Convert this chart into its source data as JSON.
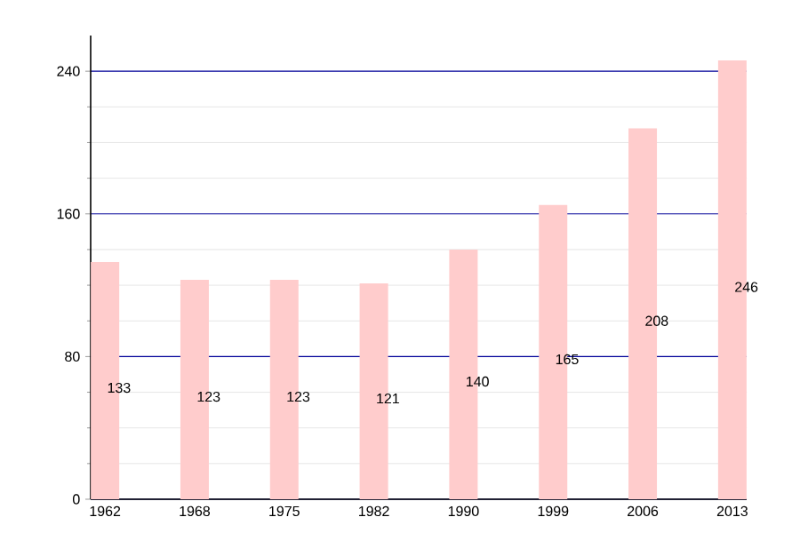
{
  "chart_data": {
    "type": "bar",
    "categories": [
      "1962",
      "1968",
      "1975",
      "1982",
      "1990",
      "1999",
      "2006",
      "2013"
    ],
    "values": [
      133,
      123,
      123,
      121,
      140,
      165,
      208,
      246
    ],
    "color": "#ffcccc",
    "ylim": [
      0,
      260
    ],
    "yticks": [
      0,
      80,
      160,
      240
    ],
    "grid": "y",
    "data_labels": true
  }
}
